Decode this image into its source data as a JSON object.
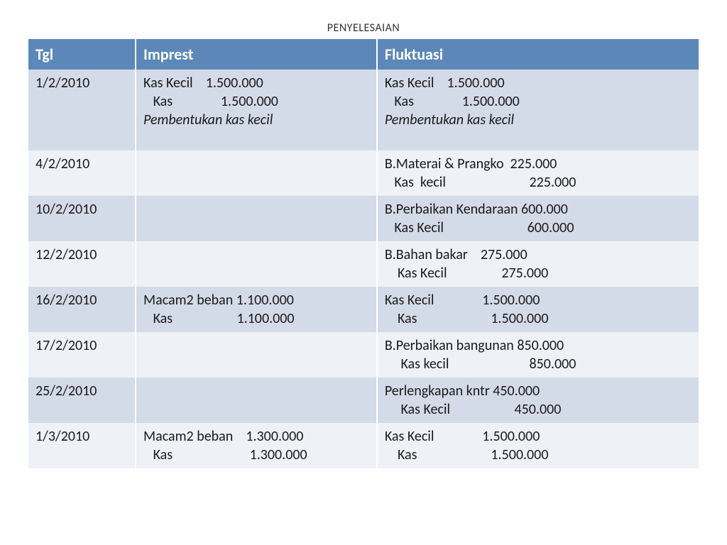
{
  "title": "PENYELESAIAN",
  "table": {
    "header_bg": "#5b88b8",
    "header_fg": "#ffffff",
    "stripe_colors": [
      "#d3dae8",
      "#eef1f6"
    ],
    "column_widths_pct": [
      16,
      36,
      48
    ],
    "columns": [
      "Tgl",
      "Imprest",
      "Fluktuasi"
    ],
    "rows": [
      {
        "tgl": "1/2/2010",
        "imprest_lines": [
          "Kas Kecil    1.500.000",
          "   Kas               1.500.000"
        ],
        "imprest_note": "Pembentukan kas kecil",
        "fluktuasi_lines": [
          "Kas Kecil    1.500.000",
          "   Kas               1.500.000"
        ],
        "fluktuasi_note": "Pembentukan kas kecil",
        "tall": true
      },
      {
        "tgl": "4/2/2010",
        "imprest_lines": [],
        "imprest_note": "",
        "fluktuasi_lines": [
          "B.Materai & Prangko  225.000",
          "   Kas  kecil                          225.000"
        ],
        "fluktuasi_note": ""
      },
      {
        "tgl": "10/2/2010",
        "imprest_lines": [],
        "imprest_note": "",
        "fluktuasi_lines": [
          "B.Perbaikan Kendaraan 600.000",
          "   Kas Kecil                          600.000"
        ],
        "fluktuasi_note": ""
      },
      {
        "tgl": "12/2/2010",
        "imprest_lines": [],
        "imprest_note": "",
        "fluktuasi_lines": [
          "B.Bahan bakar    275.000",
          "    Kas Kecil                 275.000"
        ],
        "fluktuasi_note": ""
      },
      {
        "tgl": "16/2/2010",
        "imprest_lines": [
          "Macam2 beban 1.100.000",
          "   Kas                    1.100.000"
        ],
        "imprest_note": "",
        "fluktuasi_lines": [
          "Kas Kecil               1.500.000",
          "    Kas                       1.500.000"
        ],
        "fluktuasi_note": ""
      },
      {
        "tgl": "17/2/2010",
        "imprest_lines": [],
        "imprest_note": "",
        "fluktuasi_lines": [
          "B.Perbaikan bangunan 850.000",
          "     Kas kecil                         850.000"
        ],
        "fluktuasi_note": ""
      },
      {
        "tgl": "25/2/2010",
        "imprest_lines": [],
        "imprest_note": "",
        "fluktuasi_lines": [
          "Perlengkapan kntr 450.000",
          "     Kas Kecil                    450.000"
        ],
        "fluktuasi_note": ""
      },
      {
        "tgl": "1/3/2010",
        "imprest_lines": [
          "Macam2 beban    1.300.000",
          "   Kas                        1.300.000"
        ],
        "imprest_note": "",
        "fluktuasi_lines": [
          "Kas Kecil               1.500.000",
          "    Kas                       1.500.000"
        ],
        "fluktuasi_note": ""
      }
    ]
  }
}
